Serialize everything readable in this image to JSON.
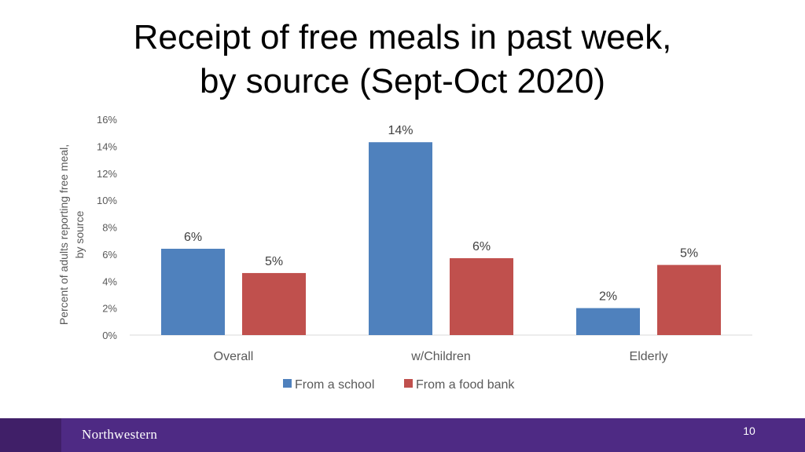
{
  "slide": {
    "title_line1": "Receipt of free meals in past week,",
    "title_line2": "by source (Sept-Oct 2020)",
    "page_number": "10",
    "logo_text": "Northwestern"
  },
  "chart_data": {
    "type": "bar",
    "title": "",
    "ylabel_line1": "Percent of adults reporting free meal,",
    "ylabel_line2": "by source",
    "xlabel": "",
    "categories": [
      "Overall",
      "w/Children",
      "Elderly"
    ],
    "series": [
      {
        "name": "From a school",
        "color": "#4f81bd",
        "values": [
          6.4,
          14.3,
          2.0
        ],
        "labels": [
          "6%",
          "14%",
          "2%"
        ]
      },
      {
        "name": "From a food bank",
        "color": "#c0504d",
        "values": [
          4.6,
          5.7,
          5.2
        ],
        "labels": [
          "5%",
          "6%",
          "5%"
        ]
      }
    ],
    "ylim": [
      0,
      16
    ],
    "yticks": [
      "0%",
      "2%",
      "4%",
      "6%",
      "8%",
      "10%",
      "12%",
      "14%",
      "16%"
    ],
    "grid": false,
    "legend_position": "bottom"
  }
}
